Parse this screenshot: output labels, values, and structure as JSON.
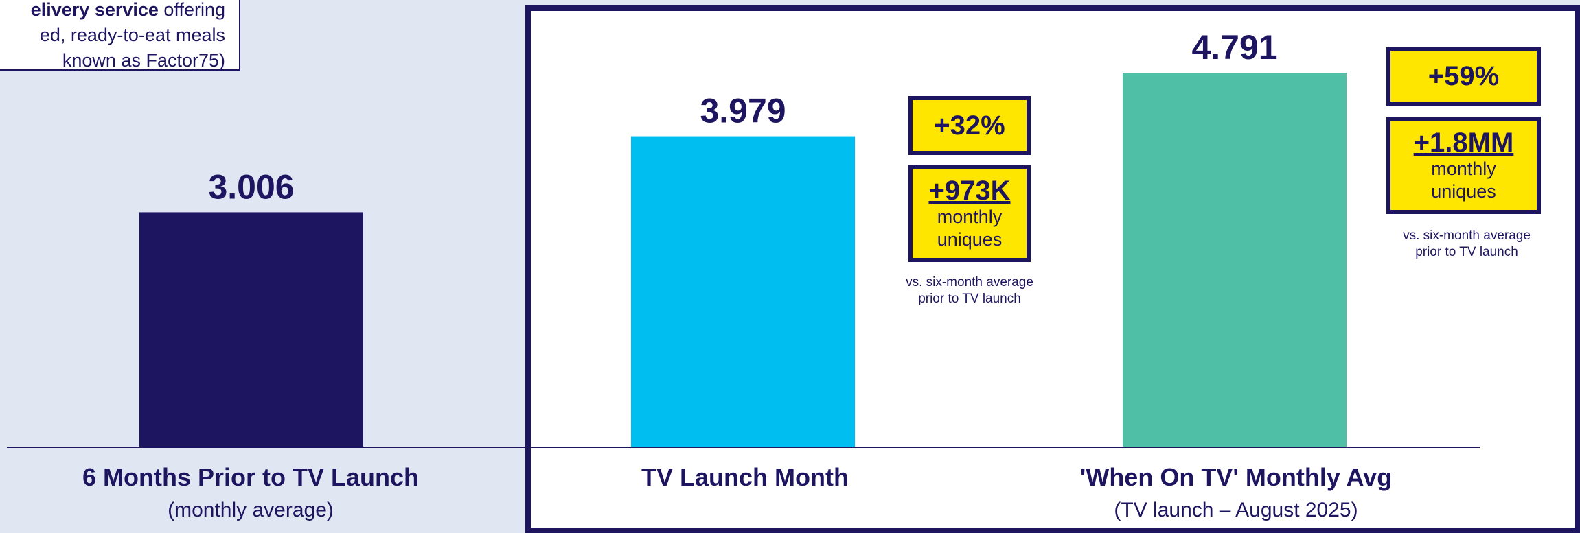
{
  "note": {
    "line1_bold": "elivery service",
    "line1_rest": " offering",
    "line2": "ed, ready-to-eat meals",
    "line3": "known as Factor75)"
  },
  "chart_data": {
    "type": "bar",
    "categories": [
      "6 Months Prior to TV Launch",
      "TV Launch Month",
      "'When On TV' Monthly Avg"
    ],
    "subtitles": [
      "(monthly average)",
      "",
      "(TV launch – August 2025)"
    ],
    "values": [
      3.006,
      3.979,
      4.791
    ],
    "value_labels": [
      "3.006",
      "3.979",
      "4.791"
    ],
    "colors": [
      "#1e1560",
      "#00bff0",
      "#4fbfa6"
    ],
    "ylim": [
      0,
      5.3
    ],
    "grid": false
  },
  "callouts": [
    {
      "pct": "+32%",
      "amount": "+973K",
      "unit_line1": "monthly",
      "unit_line2": "uniques",
      "vs_line1": "vs. six-month average",
      "vs_line2": "prior to TV launch"
    },
    {
      "pct": "+59%",
      "amount": "+1.8MM",
      "unit_line1": "monthly",
      "unit_line2": "uniques",
      "vs_line1": "vs. six-month average",
      "vs_line2": "prior to TV launch"
    }
  ],
  "colors": {
    "navy": "#1e1560",
    "yellow": "#ffe600",
    "background": "#e1e7f2"
  }
}
